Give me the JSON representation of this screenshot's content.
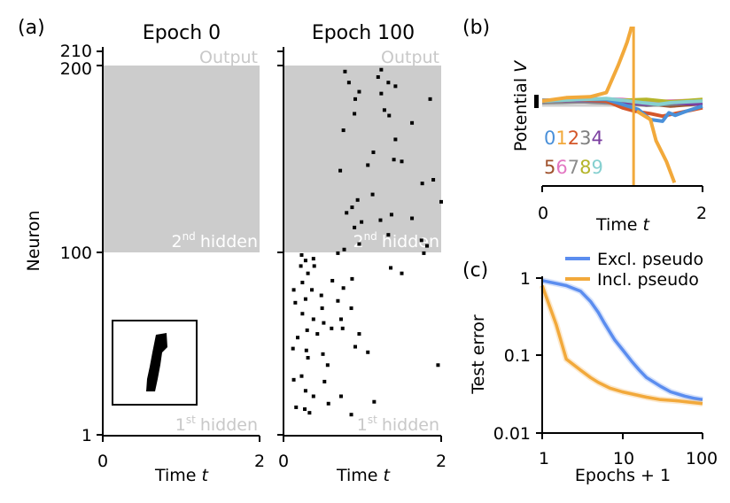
{
  "panels": {
    "a": "(a)",
    "b": "(b)",
    "c": "(c)"
  },
  "colors": {
    "shade": "#cccccc",
    "blue": "#5b8def",
    "orange": "#f2a93b",
    "digits": [
      "#4a90d9",
      "#f2a93b",
      "#d4572a",
      "#7f7f7f",
      "#7b3fa0",
      "#a0522d",
      "#e377c2",
      "#8c8c8c",
      "#b5b52a",
      "#86d0d0"
    ]
  },
  "chart_data": [
    {
      "type": "scatter",
      "id": "raster_epoch0",
      "title": "Epoch 0",
      "xlabel": "Time",
      "xlabel_italic": "t",
      "ylabel": "Neuron",
      "xlim": [
        0,
        2
      ],
      "ylim": [
        1,
        210
      ],
      "x_ticks": [
        "0",
        "2"
      ],
      "y_ticks": [
        "1",
        "100",
        "200",
        "210"
      ],
      "layers": {
        "output": "Output",
        "hidden2": "2",
        "hidden2_sup": "nd",
        "hidden2_word": "hidden",
        "hidden1": "1",
        "hidden1_sup": "st",
        "hidden1_word": "hidden"
      },
      "points": []
    },
    {
      "type": "scatter",
      "id": "raster_epoch100",
      "title": "Epoch 100",
      "xlabel": "Time",
      "xlabel_italic": "t",
      "xlim": [
        0,
        2
      ],
      "ylim": [
        1,
        210
      ],
      "x_ticks": [
        "0",
        "2"
      ],
      "layers": {
        "output": "Output",
        "hidden2": "2",
        "hidden2_sup": "nd",
        "hidden2_word": "hidden",
        "hidden1": "1",
        "hidden1_sup": "st",
        "hidden1_word": "hidden"
      },
      "points": [
        [
          0.78,
          199
        ],
        [
          1.24,
          200
        ],
        [
          1.2,
          196
        ],
        [
          0.83,
          193
        ],
        [
          1.33,
          193
        ],
        [
          1.42,
          191
        ],
        [
          0.96,
          188
        ],
        [
          1.24,
          187
        ],
        [
          0.91,
          184
        ],
        [
          1.86,
          184
        ],
        [
          1.28,
          178
        ],
        [
          0.9,
          176
        ],
        [
          1.34,
          175
        ],
        [
          1.63,
          171
        ],
        [
          0.76,
          167
        ],
        [
          1.42,
          162
        ],
        [
          1.14,
          155
        ],
        [
          1.4,
          151
        ],
        [
          1.5,
          150
        ],
        [
          1.07,
          148
        ],
        [
          0.72,
          145
        ],
        [
          1.9,
          140
        ],
        [
          1.76,
          138
        ],
        [
          1.13,
          132
        ],
        [
          0.94,
          129
        ],
        [
          2.0,
          128
        ],
        [
          0.87,
          125
        ],
        [
          0.8,
          122
        ],
        [
          1.63,
          119
        ],
        [
          1.23,
          118
        ],
        [
          1.37,
          121
        ],
        [
          0.99,
          117
        ],
        [
          0.9,
          114
        ],
        [
          1.33,
          110
        ],
        [
          1.75,
          107
        ],
        [
          0.96,
          105
        ],
        [
          1.82,
          104
        ],
        [
          0.77,
          102
        ],
        [
          0.69,
          100
        ],
        [
          1.78,
          100
        ],
        [
          0.23,
          99
        ],
        [
          0.28,
          96
        ],
        [
          0.38,
          97
        ],
        [
          0.22,
          93
        ],
        [
          1.36,
          92
        ],
        [
          0.39,
          93
        ],
        [
          0.31,
          89
        ],
        [
          1.5,
          89
        ],
        [
          0.24,
          84
        ],
        [
          0.87,
          86
        ],
        [
          0.62,
          85
        ],
        [
          0.13,
          80
        ],
        [
          0.36,
          80
        ],
        [
          0.76,
          81
        ],
        [
          0.48,
          77
        ],
        [
          0.28,
          75
        ],
        [
          0.69,
          74
        ],
        [
          0.15,
          73
        ],
        [
          0.49,
          70
        ],
        [
          0.86,
          70
        ],
        [
          0.24,
          67
        ],
        [
          0.38,
          64
        ],
        [
          0.73,
          64
        ],
        [
          0.51,
          62
        ],
        [
          0.61,
          59
        ],
        [
          0.3,
          58
        ],
        [
          0.75,
          59
        ],
        [
          0.43,
          56
        ],
        [
          0.18,
          54
        ],
        [
          0.96,
          56
        ],
        [
          0.12,
          48
        ],
        [
          0.91,
          49
        ],
        [
          1.07,
          46
        ],
        [
          0.29,
          47
        ],
        [
          0.5,
          45
        ],
        [
          0.31,
          43
        ],
        [
          0.56,
          39
        ],
        [
          1.96,
          39
        ],
        [
          0.23,
          33
        ],
        [
          0.52,
          30
        ],
        [
          0.13,
          31
        ],
        [
          0.28,
          25
        ],
        [
          0.38,
          22
        ],
        [
          0.73,
          22
        ],
        [
          1.15,
          19
        ],
        [
          0.57,
          18
        ],
        [
          0.16,
          16
        ],
        [
          0.27,
          15
        ],
        [
          0.33,
          13
        ],
        [
          0.86,
          12
        ]
      ]
    },
    {
      "type": "line",
      "id": "potential",
      "ylabel": "Potential",
      "ylabel_italic": "V",
      "xlabel": "Time",
      "xlabel_italic": "t",
      "xlim": [
        0,
        2
      ],
      "ylim": [
        -1.0,
        1.0
      ],
      "x_ticks": [
        "0",
        "2"
      ],
      "threshold_marker": "▮",
      "digit_legend": {
        "row1": [
          "0",
          "1",
          "2",
          "3",
          "4"
        ],
        "row2": [
          "5",
          "6",
          "7",
          "8",
          "9"
        ]
      },
      "series": [
        {
          "name": "0",
          "points": [
            [
              0,
              0.02
            ],
            [
              0.4,
              0.04
            ],
            [
              0.8,
              0.04
            ],
            [
              1.0,
              -0.02
            ],
            [
              1.2,
              -0.08
            ],
            [
              1.35,
              -0.2
            ],
            [
              1.5,
              -0.22
            ],
            [
              1.58,
              -0.12
            ],
            [
              1.66,
              -0.15
            ],
            [
              1.8,
              -0.1
            ],
            [
              2.0,
              -0.04
            ]
          ]
        },
        {
          "name": "1",
          "points": [
            [
              0,
              0.02
            ],
            [
              0.3,
              0.06
            ],
            [
              0.6,
              0.07
            ],
            [
              0.8,
              0.12
            ],
            [
              0.95,
              0.45
            ],
            [
              1.02,
              0.62
            ],
            [
              1.06,
              0.72
            ],
            [
              1.1,
              0.85
            ],
            [
              1.14,
              1.0
            ]
          ]
        },
        {
          "name": "1b",
          "points": [
            [
              1.18,
              -0.1
            ],
            [
              1.35,
              -0.2
            ],
            [
              1.42,
              -0.45
            ],
            [
              1.55,
              -0.7
            ],
            [
              1.65,
              -0.95
            ]
          ]
        },
        {
          "name": "2",
          "points": [
            [
              0,
              0.02
            ],
            [
              0.4,
              0.04
            ],
            [
              0.8,
              0.02
            ],
            [
              1.0,
              -0.06
            ],
            [
              1.15,
              -0.1
            ],
            [
              1.35,
              -0.13
            ],
            [
              1.5,
              -0.16
            ],
            [
              1.7,
              -0.12
            ],
            [
              2.0,
              -0.06
            ]
          ]
        },
        {
          "name": "3",
          "points": [
            [
              0,
              0.03
            ],
            [
              0.5,
              0.04
            ],
            [
              1.0,
              0.01
            ],
            [
              1.3,
              -0.03
            ],
            [
              1.6,
              -0.02
            ],
            [
              2.0,
              0.0
            ]
          ]
        },
        {
          "name": "4",
          "points": [
            [
              0,
              0.02
            ],
            [
              0.5,
              0.03
            ],
            [
              1.0,
              0.01
            ],
            [
              1.3,
              -0.02
            ],
            [
              1.6,
              0.0
            ],
            [
              2.0,
              -0.02
            ]
          ]
        },
        {
          "name": "5",
          "points": [
            [
              0,
              0.02
            ],
            [
              0.6,
              0.05
            ],
            [
              1.0,
              0.02
            ],
            [
              1.3,
              -0.01
            ],
            [
              1.6,
              -0.04
            ],
            [
              2.0,
              -0.01
            ]
          ]
        },
        {
          "name": "6",
          "points": [
            [
              0,
              0.02
            ],
            [
              0.5,
              0.05
            ],
            [
              1.0,
              0.04
            ],
            [
              1.3,
              0.01
            ],
            [
              1.6,
              0.02
            ],
            [
              2.0,
              0.03
            ]
          ]
        },
        {
          "name": "7",
          "points": [
            [
              0,
              0.0
            ],
            [
              0.5,
              0.01
            ],
            [
              1.0,
              -0.01
            ],
            [
              1.3,
              -0.03
            ],
            [
              1.6,
              -0.02
            ],
            [
              2.0,
              -0.01
            ]
          ]
        },
        {
          "name": "8",
          "points": [
            [
              0,
              0.02
            ],
            [
              0.5,
              0.04
            ],
            [
              1.0,
              0.03
            ],
            [
              1.3,
              0.04
            ],
            [
              1.6,
              0.01
            ],
            [
              2.0,
              0.04
            ]
          ]
        },
        {
          "name": "9",
          "points": [
            [
              0,
              0.02
            ],
            [
              0.5,
              0.04
            ],
            [
              0.8,
              0.05
            ],
            [
              1.0,
              0.03
            ],
            [
              1.25,
              0.0
            ],
            [
              1.45,
              -0.02
            ],
            [
              1.6,
              0.0
            ],
            [
              1.8,
              0.01
            ],
            [
              2.0,
              0.02
            ]
          ]
        }
      ],
      "spike_time": 1.14
    },
    {
      "type": "line",
      "id": "test_error",
      "ylabel": "Test error",
      "xlabel": "Epochs + 1",
      "xscale": "log",
      "yscale": "log",
      "xlim": [
        1,
        100
      ],
      "ylim": [
        0.01,
        1
      ],
      "x_ticks": [
        "1",
        "10",
        "100"
      ],
      "y_ticks": [
        "1",
        "0.1",
        "0.01"
      ],
      "legend": "top-right",
      "series": [
        {
          "name": "Excl. pseudo",
          "x": [
            1,
            2,
            3,
            4,
            5,
            6,
            7,
            8,
            10,
            13,
            16,
            20,
            30,
            40,
            60,
            80,
            100
          ],
          "y": [
            0.93,
            0.8,
            0.68,
            0.5,
            0.36,
            0.26,
            0.2,
            0.16,
            0.12,
            0.085,
            0.066,
            0.052,
            0.04,
            0.034,
            0.03,
            0.028,
            0.027
          ]
        },
        {
          "name": "Incl. pseudo",
          "x": [
            1,
            1.5,
            2,
            3,
            4,
            5,
            7,
            10,
            15,
            20,
            30,
            50,
            70,
            100
          ],
          "y": [
            0.8,
            0.25,
            0.09,
            0.065,
            0.052,
            0.045,
            0.038,
            0.034,
            0.031,
            0.029,
            0.027,
            0.026,
            0.025,
            0.024
          ]
        }
      ]
    }
  ]
}
